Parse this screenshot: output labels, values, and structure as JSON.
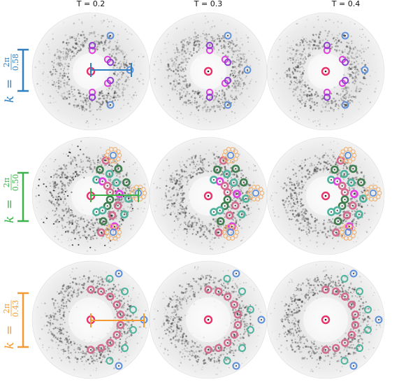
{
  "figure": {
    "columns": [
      {
        "label": "T = 0.2"
      },
      {
        "label": "T = 0.3"
      },
      {
        "label": "T = 0.4"
      }
    ],
    "rows": [
      {
        "k_label": "k",
        "eq": "=",
        "numerator": "2π",
        "denominator": "0.58",
        "color": "#2f7fc1",
        "ring": "hex"
      },
      {
        "k_label": "k",
        "eq": "=",
        "numerator": "2π",
        "denominator": "0.50",
        "color": "#3cb34a",
        "ring": "dense"
      },
      {
        "k_label": "k",
        "eq": "=",
        "numerator": "2π",
        "denominator": "0.43",
        "color": "#f39a34",
        "ring": "round"
      }
    ],
    "marker_colors": {
      "center": "#e8336b",
      "magenta": "#e040e0",
      "purple": "#9040d0",
      "blue": "#5b8fdc",
      "teal": "#4fb39e",
      "dark_green": "#3f7f4f",
      "pink": "#d46a8e",
      "peach": "#f0b070",
      "olive": "#8aa050"
    }
  }
}
